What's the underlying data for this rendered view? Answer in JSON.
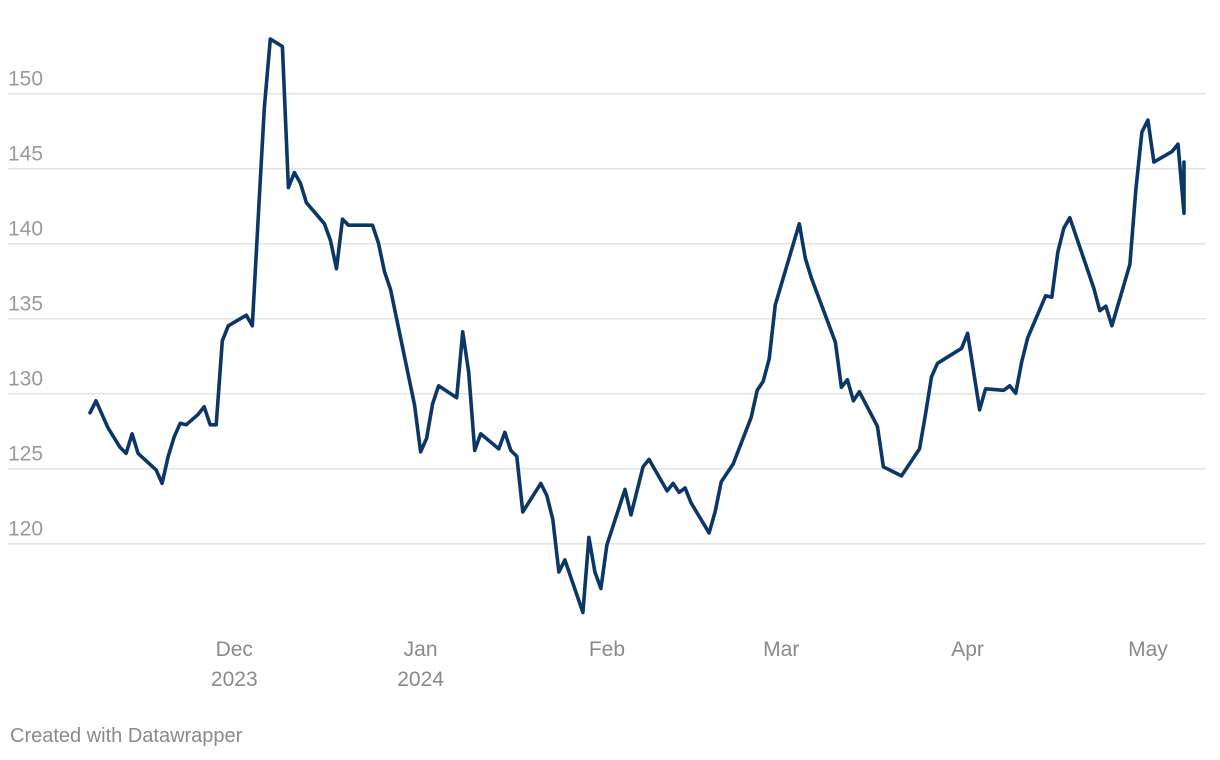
{
  "chart_data": {
    "type": "line",
    "title": "",
    "xlabel": "",
    "ylabel": "",
    "xlim": [
      "2023-11-06",
      "2024-05-08"
    ],
    "ylim": [
      114.5,
      155
    ],
    "grid": {
      "x": false,
      "y": true
    },
    "legend": "none",
    "y_ticks": [
      {
        "value": 120,
        "label": "120"
      },
      {
        "value": 125,
        "label": "125"
      },
      {
        "value": 130,
        "label": "130"
      },
      {
        "value": 135,
        "label": "135"
      },
      {
        "value": 140,
        "label": "140"
      },
      {
        "value": 145,
        "label": "145"
      },
      {
        "value": 150,
        "label": "150"
      }
    ],
    "x_ticks": [
      {
        "date": "2023-12-01",
        "lines": [
          "Dec",
          "2023"
        ]
      },
      {
        "date": "2024-01-01",
        "lines": [
          "Jan",
          "2024"
        ]
      },
      {
        "date": "2024-02-01",
        "lines": [
          "Feb"
        ]
      },
      {
        "date": "2024-03-01",
        "lines": [
          "Mar"
        ]
      },
      {
        "date": "2024-04-01",
        "lines": [
          "Apr"
        ]
      },
      {
        "date": "2024-05-01",
        "lines": [
          "May"
        ]
      }
    ],
    "series": [
      {
        "color": "#0b3768",
        "points": [
          [
            "2023-11-07",
            128.7
          ],
          [
            "2023-11-08",
            129.5
          ],
          [
            "2023-11-10",
            127.7
          ],
          [
            "2023-11-12",
            126.4
          ],
          [
            "2023-11-13",
            126.0
          ],
          [
            "2023-11-14",
            127.3
          ],
          [
            "2023-11-15",
            126.0
          ],
          [
            "2023-11-18",
            124.9
          ],
          [
            "2023-11-19",
            124.0
          ],
          [
            "2023-11-20",
            125.8
          ],
          [
            "2023-11-21",
            127.1
          ],
          [
            "2023-11-22",
            128.0
          ],
          [
            "2023-11-23",
            127.9
          ],
          [
            "2023-11-25",
            128.6
          ],
          [
            "2023-11-26",
            129.1
          ],
          [
            "2023-11-27",
            127.9
          ],
          [
            "2023-11-28",
            127.9
          ],
          [
            "2023-11-29",
            133.5
          ],
          [
            "2023-11-30",
            134.5
          ],
          [
            "2023-12-03",
            135.2
          ],
          [
            "2023-12-04",
            134.5
          ],
          [
            "2023-12-05",
            141.8
          ],
          [
            "2023-12-06",
            149.0
          ],
          [
            "2023-12-07",
            153.6
          ],
          [
            "2023-12-09",
            153.1
          ],
          [
            "2023-12-10",
            143.7
          ],
          [
            "2023-12-11",
            144.7
          ],
          [
            "2023-12-12",
            144.0
          ],
          [
            "2023-12-13",
            142.7
          ],
          [
            "2023-12-16",
            141.3
          ],
          [
            "2023-12-17",
            140.2
          ],
          [
            "2023-12-18",
            138.3
          ],
          [
            "2023-12-19",
            141.6
          ],
          [
            "2023-12-20",
            141.2
          ],
          [
            "2023-12-24",
            141.2
          ],
          [
            "2023-12-25",
            140.0
          ],
          [
            "2023-12-26",
            138.1
          ],
          [
            "2023-12-27",
            136.9
          ],
          [
            "2023-12-31",
            129.2
          ],
          [
            "2024-01-01",
            126.1
          ],
          [
            "2024-01-02",
            127.0
          ],
          [
            "2024-01-03",
            129.3
          ],
          [
            "2024-01-04",
            130.5
          ],
          [
            "2024-01-07",
            129.7
          ],
          [
            "2024-01-08",
            134.1
          ],
          [
            "2024-01-09",
            131.4
          ],
          [
            "2024-01-10",
            126.2
          ],
          [
            "2024-01-11",
            127.3
          ],
          [
            "2024-01-14",
            126.3
          ],
          [
            "2024-01-15",
            127.4
          ],
          [
            "2024-01-16",
            126.2
          ],
          [
            "2024-01-17",
            125.8
          ],
          [
            "2024-01-18",
            122.1
          ],
          [
            "2024-01-21",
            124.0
          ],
          [
            "2024-01-22",
            123.2
          ],
          [
            "2024-01-23",
            121.6
          ],
          [
            "2024-01-24",
            118.1
          ],
          [
            "2024-01-25",
            118.9
          ],
          [
            "2024-01-28",
            115.4
          ],
          [
            "2024-01-29",
            120.4
          ],
          [
            "2024-01-30",
            118.1
          ],
          [
            "2024-01-31",
            117.0
          ],
          [
            "2024-02-01",
            119.9
          ],
          [
            "2024-02-04",
            123.6
          ],
          [
            "2024-02-05",
            121.9
          ],
          [
            "2024-02-07",
            125.1
          ],
          [
            "2024-02-08",
            125.6
          ],
          [
            "2024-02-11",
            123.5
          ],
          [
            "2024-02-12",
            124.0
          ],
          [
            "2024-02-13",
            123.4
          ],
          [
            "2024-02-14",
            123.7
          ],
          [
            "2024-02-15",
            122.7
          ],
          [
            "2024-02-18",
            120.7
          ],
          [
            "2024-02-19",
            122.1
          ],
          [
            "2024-02-20",
            124.1
          ],
          [
            "2024-02-22",
            125.3
          ],
          [
            "2024-02-25",
            128.4
          ],
          [
            "2024-02-26",
            130.2
          ],
          [
            "2024-02-27",
            130.8
          ],
          [
            "2024-02-28",
            132.3
          ],
          [
            "2024-02-29",
            135.9
          ],
          [
            "2024-03-04",
            141.3
          ],
          [
            "2024-03-05",
            139.0
          ],
          [
            "2024-03-06",
            137.7
          ],
          [
            "2024-03-10",
            133.4
          ],
          [
            "2024-03-11",
            130.4
          ],
          [
            "2024-03-12",
            130.9
          ],
          [
            "2024-03-13",
            129.5
          ],
          [
            "2024-03-14",
            130.1
          ],
          [
            "2024-03-17",
            127.8
          ],
          [
            "2024-03-18",
            125.1
          ],
          [
            "2024-03-20",
            124.7
          ],
          [
            "2024-03-21",
            124.5
          ],
          [
            "2024-03-24",
            126.3
          ],
          [
            "2024-03-25",
            128.6
          ],
          [
            "2024-03-26",
            131.1
          ],
          [
            "2024-03-27",
            132.0
          ],
          [
            "2024-03-31",
            133.0
          ],
          [
            "2024-04-01",
            134.0
          ],
          [
            "2024-04-03",
            128.9
          ],
          [
            "2024-04-04",
            130.3
          ],
          [
            "2024-04-07",
            130.2
          ],
          [
            "2024-04-08",
            130.5
          ],
          [
            "2024-04-09",
            130.0
          ],
          [
            "2024-04-10",
            132.1
          ],
          [
            "2024-04-11",
            133.7
          ],
          [
            "2024-04-14",
            136.5
          ],
          [
            "2024-04-15",
            136.4
          ],
          [
            "2024-04-16",
            139.4
          ],
          [
            "2024-04-17",
            141.0
          ],
          [
            "2024-04-18",
            141.7
          ],
          [
            "2024-04-22",
            137.0
          ],
          [
            "2024-04-23",
            135.5
          ],
          [
            "2024-04-24",
            135.8
          ],
          [
            "2024-04-25",
            134.5
          ],
          [
            "2024-04-28",
            138.6
          ],
          [
            "2024-04-29",
            143.6
          ],
          [
            "2024-04-30",
            147.4
          ],
          [
            "2024-05-01",
            148.2
          ],
          [
            "2024-05-02",
            145.4
          ],
          [
            "2024-05-05",
            146.1
          ],
          [
            "2024-05-06",
            146.6
          ],
          [
            "2024-05-07",
            142.0
          ],
          [
            "2024-05-07",
            145.4
          ]
        ]
      }
    ]
  },
  "footer": {
    "credit": "Created with Datawrapper"
  }
}
